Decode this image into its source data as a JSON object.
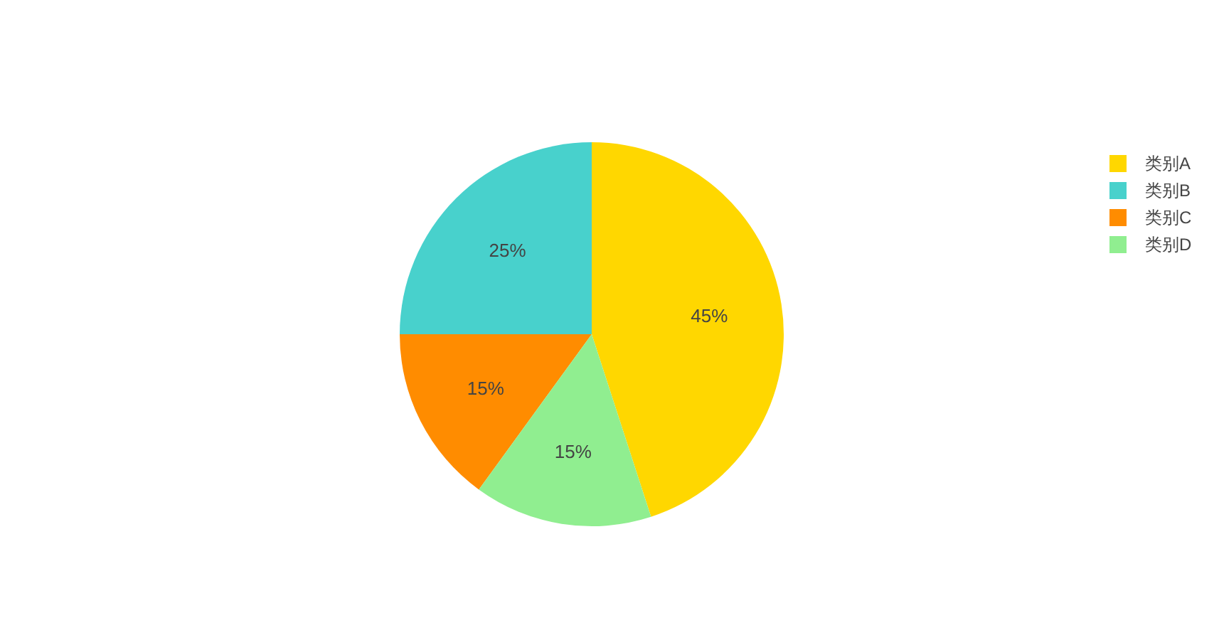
{
  "chart_data": {
    "type": "pie",
    "categories": [
      "类别A",
      "类别B",
      "类别C",
      "类别D"
    ],
    "values": [
      45,
      25,
      15,
      15
    ],
    "colors": [
      "#ffd700",
      "#48d1cc",
      "#ff8c00",
      "#90ee90"
    ],
    "value_labels": [
      "45%",
      "25%",
      "15%",
      "15%"
    ],
    "legend": "top right"
  }
}
